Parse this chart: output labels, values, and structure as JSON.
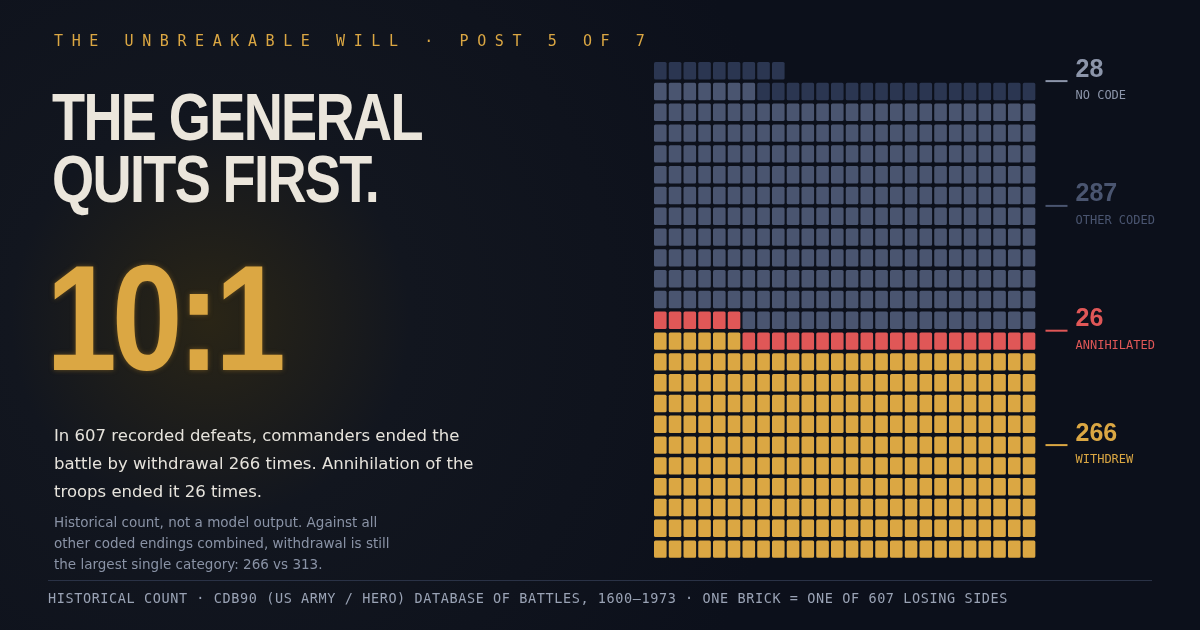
{
  "chart_data": {
    "type": "other",
    "subtitle": "THE UNBREAKABLE WILL · POST 5 OF 7",
    "title": "THE GENERAL QUITS FIRST.",
    "categories": [
      "NO CODE",
      "OTHER CODED",
      "ANNIHILATED",
      "WITHDREW"
    ],
    "values": [
      28,
      287,
      26,
      266
    ],
    "colors": [
      "#2b3651",
      "#4a5570",
      "#e05757",
      "#dba743"
    ],
    "data_labels": true,
    "annotations": [
      "10:1",
      "In 607 recorded defeats, commanders ended the battle by withdrawal 266 times. Annihilation of the troops ended it 26 times.",
      "Historical count, not a model output. Against all other coded endings combined, withdrawal is still the largest single category: 266 vs 313.",
      "HISTORICAL COUNT · CDB90 (US ARMY / HERO) DATABASE OF BATTLES, 1600–1973 · ONE BRICK = ONE OF 607 LOSING SIDES"
    ]
  }
}
